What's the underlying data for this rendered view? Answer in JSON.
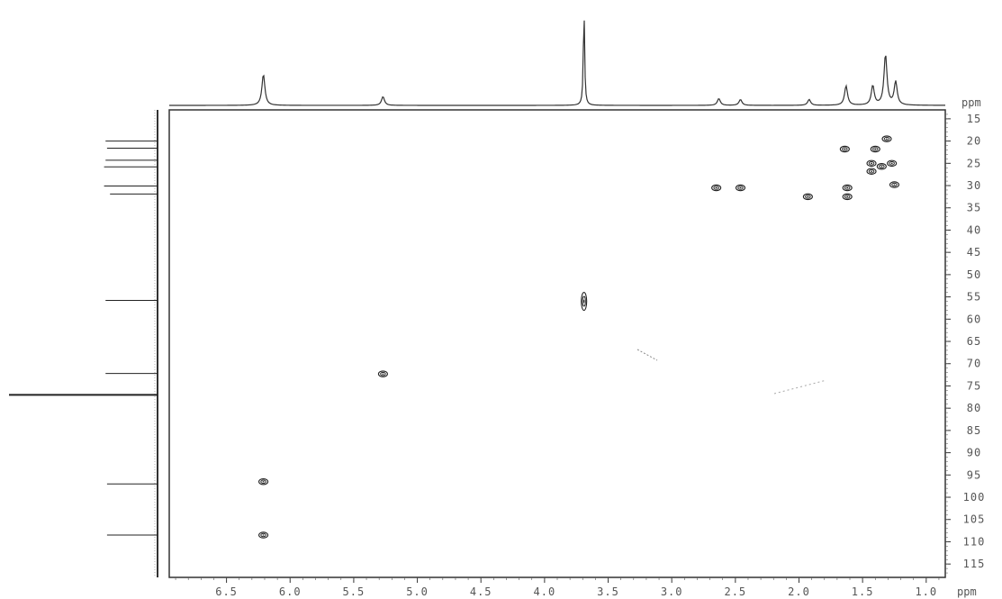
{
  "chart_data": {
    "type": "scatter",
    "subtype": "2D HSQC NMR contour plot",
    "xlabel": "ppm",
    "ylabel": "ppm",
    "xlim": [
      6.95,
      0.85
    ],
    "ylim": [
      13,
      118
    ],
    "x_ticks": [
      6.5,
      6.0,
      5.5,
      5.0,
      4.5,
      4.0,
      3.5,
      3.0,
      2.5,
      2.0,
      1.5,
      1.0
    ],
    "x_tick_labels": [
      "6.5",
      "6.0",
      "5.5",
      "5.0",
      "4.5",
      "4.0",
      "3.5",
      "3.0",
      "2.5",
      "2.0",
      "1.5",
      "1.0"
    ],
    "y_ticks": [
      15,
      20,
      25,
      30,
      35,
      40,
      45,
      50,
      55,
      60,
      65,
      70,
      75,
      80,
      85,
      90,
      95,
      100,
      105,
      110,
      115
    ],
    "y_tick_labels": [
      "15",
      "20",
      "25",
      "30",
      "35",
      "40",
      "45",
      "50",
      "55",
      "60",
      "65",
      "70",
      "75",
      "80",
      "85",
      "90",
      "95",
      "100",
      "105",
      "110",
      "115"
    ],
    "grid": false,
    "correlation_peaks": [
      {
        "x": 6.21,
        "y": 96.5
      },
      {
        "x": 6.21,
        "y": 108.5
      },
      {
        "x": 5.27,
        "y": 72.3
      },
      {
        "x": 3.69,
        "y": 56.0
      },
      {
        "x": 2.65,
        "y": 30.5
      },
      {
        "x": 2.46,
        "y": 30.5
      },
      {
        "x": 1.93,
        "y": 32.5
      },
      {
        "x": 1.64,
        "y": 21.8
      },
      {
        "x": 1.62,
        "y": 30.5
      },
      {
        "x": 1.62,
        "y": 32.5
      },
      {
        "x": 1.4,
        "y": 21.8
      },
      {
        "x": 1.31,
        "y": 19.5
      },
      {
        "x": 1.43,
        "y": 25.0
      },
      {
        "x": 1.43,
        "y": 26.8
      },
      {
        "x": 1.35,
        "y": 25.7
      },
      {
        "x": 1.27,
        "y": 25.0
      },
      {
        "x": 1.25,
        "y": 29.8
      }
    ],
    "proton_projection_peaks": [
      {
        "ppm": 6.21,
        "intensity": 0.32
      },
      {
        "ppm": 5.27,
        "intensity": 0.09
      },
      {
        "ppm": 3.69,
        "intensity": 1.0
      },
      {
        "ppm": 2.63,
        "intensity": 0.07
      },
      {
        "ppm": 2.46,
        "intensity": 0.06
      },
      {
        "ppm": 1.92,
        "intensity": 0.06
      },
      {
        "ppm": 1.63,
        "intensity": 0.2
      },
      {
        "ppm": 1.42,
        "intensity": 0.2
      },
      {
        "ppm": 1.32,
        "intensity": 0.52
      },
      {
        "ppm": 1.24,
        "intensity": 0.24
      }
    ],
    "carbon_projection_peaks": [
      {
        "ppm": 20.0,
        "intensity": 0.35
      },
      {
        "ppm": 21.6,
        "intensity": 0.34
      },
      {
        "ppm": 24.3,
        "intensity": 0.35
      },
      {
        "ppm": 25.8,
        "intensity": 0.36
      },
      {
        "ppm": 30.1,
        "intensity": 0.36
      },
      {
        "ppm": 31.9,
        "intensity": 0.32
      },
      {
        "ppm": 55.8,
        "intensity": 0.35
      },
      {
        "ppm": 72.2,
        "intensity": 0.35
      },
      {
        "ppm": 77.0,
        "intensity": 1.0
      },
      {
        "ppm": 97.0,
        "intensity": 0.34
      },
      {
        "ppm": 108.5,
        "intensity": 0.34
      }
    ]
  }
}
